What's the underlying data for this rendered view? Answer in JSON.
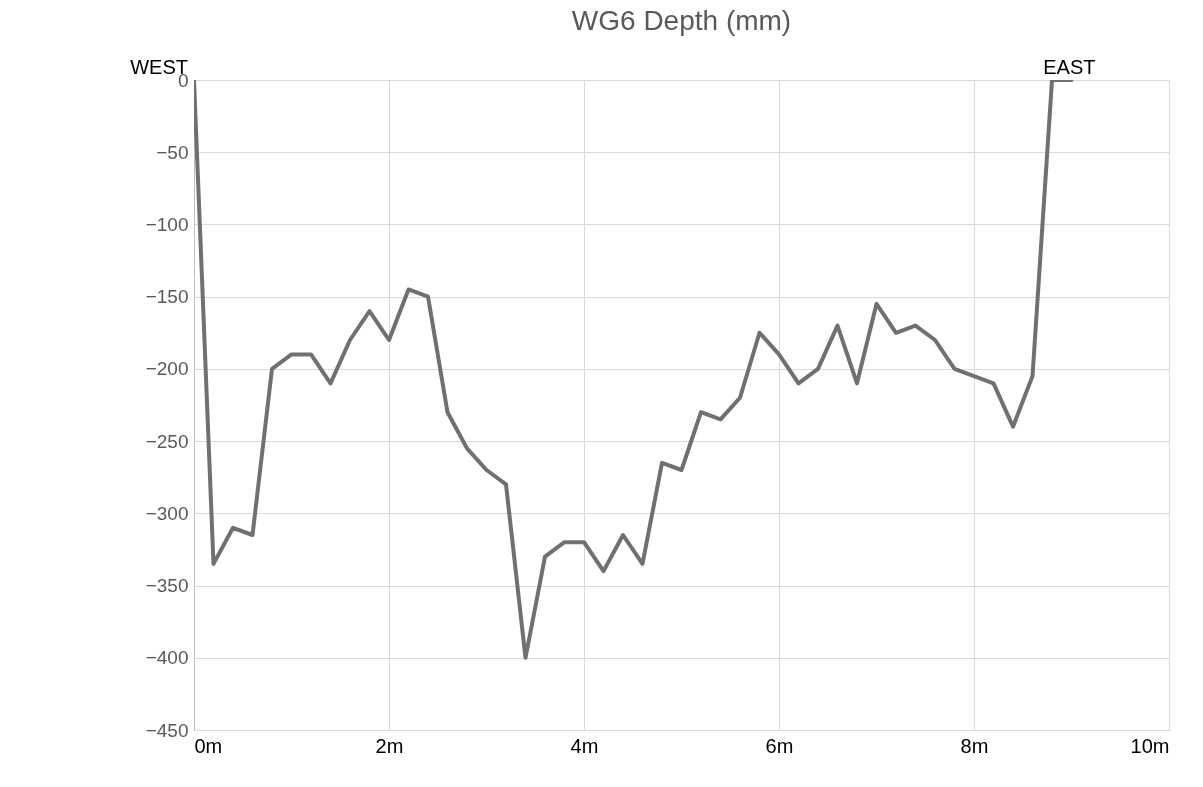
{
  "chart_data": {
    "type": "line",
    "title": "WG6 Depth (mm)",
    "annotations": [
      "WEST",
      "EAST"
    ],
    "x": [
      0,
      0.2,
      0.4,
      0.6,
      0.8,
      1.0,
      1.2,
      1.4,
      1.6,
      1.8,
      2.0,
      2.2,
      2.4,
      2.6,
      2.8,
      3.0,
      3.2,
      3.4,
      3.6,
      3.8,
      4.0,
      4.2,
      4.4,
      4.6,
      4.8,
      5.0,
      5.2,
      5.4,
      5.6,
      5.8,
      6.0,
      6.2,
      6.4,
      6.6,
      6.8,
      7.0,
      7.2,
      7.4,
      7.6,
      7.8,
      8.0,
      8.2,
      8.4,
      8.6,
      8.8,
      9.0
    ],
    "series": [
      {
        "color": "#707070",
        "values": [
          0,
          -335,
          -310,
          -315,
          -200,
          -190,
          -190,
          -210,
          -180,
          -160,
          -180,
          -145,
          -150,
          -230,
          -255,
          -270,
          -280,
          -400,
          -330,
          -320,
          -320,
          -340,
          -315,
          -335,
          -265,
          -270,
          -230,
          -235,
          -220,
          -175,
          -190,
          -210,
          -200,
          -170,
          -210,
          -155,
          -175,
          -170,
          -180,
          -200,
          -205,
          -210,
          -240,
          -205,
          0,
          0
        ]
      }
    ],
    "xlim": [
      0,
      10
    ],
    "xticks": [
      {
        "value": 0,
        "label": "0m"
      },
      {
        "value": 2,
        "label": "2m"
      },
      {
        "value": 4,
        "label": "4m"
      },
      {
        "value": 6,
        "label": "6m"
      },
      {
        "value": 8,
        "label": "8m"
      },
      {
        "value": 10,
        "label": "10m"
      }
    ],
    "ylim": [
      -450,
      0
    ],
    "yticks": [
      -450,
      -400,
      -350,
      -300,
      -250,
      -200,
      -150,
      -100,
      -50,
      0
    ],
    "grid": true,
    "marker": "none",
    "line_style": "solid"
  }
}
